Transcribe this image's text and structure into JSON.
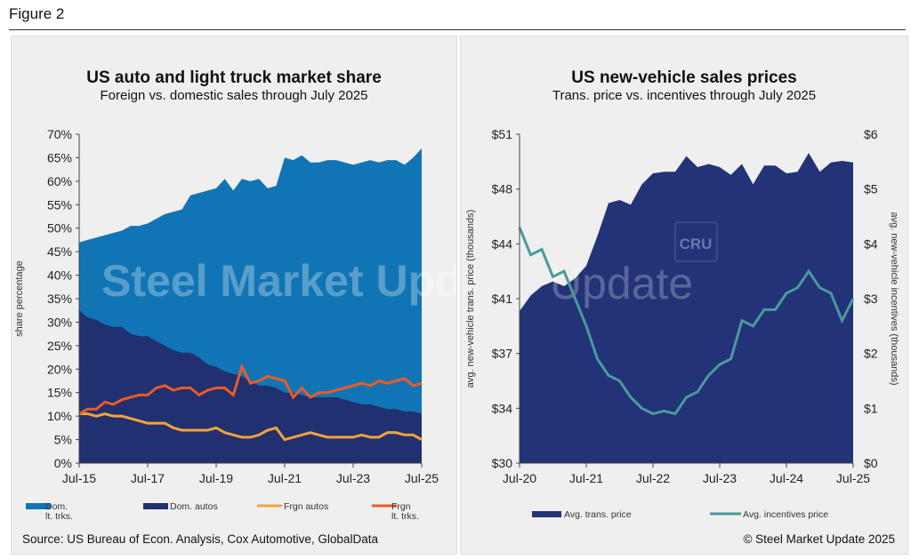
{
  "figure_label": "Figure 2",
  "source": "Source: US Bureau of Econ. Analysis, Cox Automotive, GlobalData",
  "copyright": "© Steel Market Update 2025",
  "watermark": "Steel Market Update",
  "chart_data": [
    {
      "type": "area",
      "title": "US auto and light truck market share",
      "subtitle": "Foreign vs. domestic sales through July 2025",
      "ylabel": "share percentage",
      "ylim": [
        0,
        70
      ],
      "yticks": [
        "0%",
        "5%",
        "10%",
        "15%",
        "20%",
        "25%",
        "30%",
        "35%",
        "40%",
        "45%",
        "50%",
        "55%",
        "60%",
        "65%",
        "70%"
      ],
      "xticks": [
        "Jul-15",
        "Jul-17",
        "Jul-19",
        "Jul-21",
        "Jul-23",
        "Jul-25"
      ],
      "x_range": [
        "Jul-15",
        "Jul-25"
      ],
      "x_step": "quarterly",
      "legend": "bottom",
      "grid": false,
      "colors": {
        "dom_lt_trks": "#1175b5",
        "dom_autos": "#203070",
        "frgn_autos": "#f7a23a",
        "frgn_lt_trks": "#ee5a24"
      },
      "series": [
        {
          "name": "Dom. lt. trks.",
          "stacked_top": [
            47,
            47.5,
            48,
            48.5,
            49,
            49.5,
            50.5,
            50.5,
            51,
            52,
            53,
            53.5,
            54,
            57,
            57.5,
            58,
            58.5,
            60.5,
            58,
            60.5,
            60,
            60.5,
            58.5,
            59,
            65,
            64.5,
            65.5,
            64,
            64,
            64.5,
            64.5,
            64,
            63.5,
            64,
            64.5,
            64,
            64.5,
            64.5,
            63.5,
            65,
            67
          ]
        },
        {
          "name": "Dom. autos",
          "values": [
            32.5,
            31,
            30.5,
            29.5,
            29,
            29,
            27.5,
            27,
            27,
            26,
            25,
            24,
            23.5,
            23.5,
            22.5,
            21,
            20.5,
            19.5,
            19,
            18.5,
            17.5,
            16.5,
            16.5,
            16,
            15,
            15,
            14.5,
            14,
            14,
            14,
            14,
            13.5,
            13,
            12.5,
            12.5,
            12,
            11.5,
            11.5,
            11,
            11,
            10.5
          ]
        },
        {
          "name": "Frgn autos",
          "values": [
            10.5,
            10.5,
            10,
            10.5,
            10,
            10,
            9.5,
            9,
            8.5,
            8.5,
            8.5,
            7.5,
            7,
            7,
            7,
            7,
            7.5,
            6.5,
            6,
            5.5,
            5.5,
            6,
            7,
            7.5,
            5,
            5.5,
            6,
            6.5,
            6,
            5.5,
            5.5,
            5.5,
            5.5,
            6,
            5.5,
            5.5,
            6.5,
            6.5,
            6,
            6,
            5
          ]
        },
        {
          "name": "Frgn lt. trks.",
          "values": [
            10.5,
            11.5,
            11.5,
            13,
            12.5,
            13.5,
            14,
            14.5,
            14.5,
            16,
            16.5,
            15.5,
            16,
            16,
            14.5,
            15.5,
            16,
            16,
            14.5,
            20.5,
            17,
            17.5,
            18.5,
            18,
            17.5,
            14,
            16,
            14,
            15,
            15,
            15.5,
            16,
            16.5,
            17,
            16.5,
            17.5,
            17,
            17.5,
            18,
            16.5,
            17
          ]
        }
      ]
    },
    {
      "type": "area+line",
      "title": "US new-vehicle sales prices",
      "subtitle": "Trans. price vs. incentives through July 2025",
      "ylabel": "avg. new-vehicle trans. price (thousands)",
      "y2label": "avg. new-vehicle incentives (thousands)",
      "ylim": [
        30,
        51
      ],
      "y2lim": [
        0,
        6
      ],
      "yticks": [
        "$30",
        "$34",
        "$37",
        "$41",
        "$44",
        "$48",
        "$51"
      ],
      "y2ticks": [
        "$0",
        "$1",
        "$2",
        "$3",
        "$4",
        "$5",
        "$6"
      ],
      "xticks": [
        "Jul-20",
        "Jul-21",
        "Jul-22",
        "Jul-23",
        "Jul-24",
        "Jul-25"
      ],
      "x_range": [
        "Jul-20",
        "Jul-25"
      ],
      "x_step": "bimonthly",
      "legend": "bottom",
      "grid": false,
      "logo": "CRU",
      "colors": {
        "trans": "#223377",
        "incent": "#4a9a9c"
      },
      "series": [
        {
          "name": "Avg. trans. price",
          "values": [
            39.7,
            40.7,
            41.3,
            41.6,
            41.3,
            41.8,
            42.6,
            44.5,
            46.6,
            46.8,
            46.5,
            47.8,
            48.5,
            48.6,
            48.6,
            49.6,
            48.9,
            49.1,
            48.9,
            48.4,
            49.1,
            47.8,
            49,
            49,
            48.5,
            48.6,
            49.8,
            48.6,
            49.2,
            49.3,
            49.2
          ]
        },
        {
          "name": "Avg. incentives price",
          "values": [
            4.3,
            3.8,
            3.9,
            3.4,
            3.5,
            3,
            2.5,
            1.9,
            1.6,
            1.5,
            1.2,
            1,
            0.9,
            0.95,
            0.9,
            1.2,
            1.3,
            1.6,
            1.8,
            1.9,
            2.6,
            2.5,
            2.8,
            2.8,
            3.1,
            3.2,
            3.5,
            3.2,
            3.1,
            2.6,
            3
          ]
        }
      ]
    }
  ]
}
